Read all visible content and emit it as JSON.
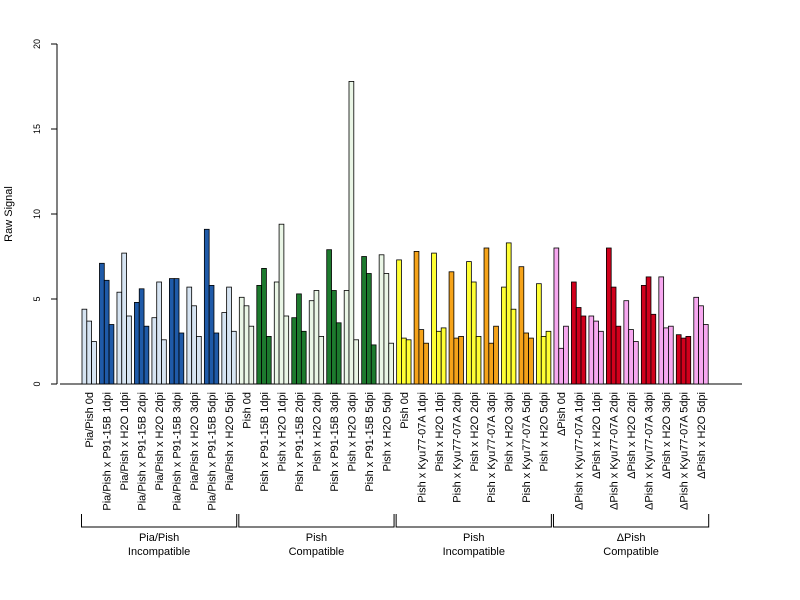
{
  "chart_data": {
    "type": "bar",
    "ylabel": "Raw Signal",
    "ylim": [
      0,
      20
    ],
    "yticks": [
      0,
      5,
      10,
      15,
      20
    ],
    "grid": false,
    "colors": {
      "light_blue": "#d6e4f2",
      "dark_blue": "#1f5aa8",
      "light_green": "#eaf6e6",
      "dark_green": "#1d7a2e",
      "yellow": "#ffff33",
      "orange": "#f5a31a",
      "pink": "#f7a8f0",
      "red": "#d1001c"
    },
    "categories": [
      {
        "label": "Pia/Pish 0d",
        "values": [
          4.4,
          3.7,
          2.5
        ],
        "color": "light_blue"
      },
      {
        "label": "Pia/Pish x P91-15B 1dpi",
        "values": [
          7.1,
          6.1,
          3.5
        ],
        "color": "dark_blue"
      },
      {
        "label": "Pia/Pish x H2O 1dpi",
        "values": [
          5.4,
          7.7,
          4.0
        ],
        "color": "light_blue"
      },
      {
        "label": "Pia/Pish x P91-15B 2dpi",
        "values": [
          4.8,
          5.6,
          3.4
        ],
        "color": "dark_blue"
      },
      {
        "label": "Pia/Pish x H2O 2dpi",
        "values": [
          3.9,
          6.0,
          2.6
        ],
        "color": "light_blue"
      },
      {
        "label": "Pia/Pish x P91-15B 3dpi",
        "values": [
          6.2,
          6.2,
          3.0
        ],
        "color": "dark_blue"
      },
      {
        "label": "Pia/Pish x H2O 3dpi",
        "values": [
          5.7,
          4.6,
          2.8
        ],
        "color": "light_blue"
      },
      {
        "label": "Pia/Pish x P91-15B 5dpi",
        "values": [
          9.1,
          5.8,
          3.0
        ],
        "color": "dark_blue"
      },
      {
        "label": "Pia/Pish x H2O 5dpi",
        "values": [
          4.2,
          5.7,
          3.1
        ],
        "color": "light_blue"
      },
      {
        "label": "Pish 0d",
        "values": [
          5.1,
          4.6,
          3.4
        ],
        "color": "light_green"
      },
      {
        "label": "Pish x P91-15B 1dpi",
        "values": [
          5.8,
          6.8,
          2.8
        ],
        "color": "dark_green"
      },
      {
        "label": "Pish x H2O 1dpi",
        "values": [
          6.0,
          9.4,
          4.0
        ],
        "color": "light_green"
      },
      {
        "label": "Pish x P91-15B 2dpi",
        "values": [
          3.9,
          5.3,
          3.1
        ],
        "color": "dark_green"
      },
      {
        "label": "Pish x H2O 2dpi",
        "values": [
          4.9,
          5.5,
          2.8
        ],
        "color": "light_green"
      },
      {
        "label": "Pish x P91-15B 3dpi",
        "values": [
          7.9,
          5.5,
          3.6
        ],
        "color": "dark_green"
      },
      {
        "label": "Pish x H2O 3dpi",
        "values": [
          5.5,
          17.8,
          2.6
        ],
        "color": "light_green"
      },
      {
        "label": "Pish x P91-15B 5dpi",
        "values": [
          7.5,
          6.5,
          2.3
        ],
        "color": "dark_green"
      },
      {
        "label": "Pish x H2O 5dpi",
        "values": [
          7.6,
          6.5,
          2.4
        ],
        "color": "light_green"
      },
      {
        "label": "Pish 0d",
        "values": [
          7.3,
          2.7,
          2.6
        ],
        "color": "yellow"
      },
      {
        "label": "Pish x Kyu77-07A 1dpi",
        "values": [
          7.8,
          3.2,
          2.4
        ],
        "color": "orange"
      },
      {
        "label": "Pish x H2O 1dpi",
        "values": [
          7.7,
          3.1,
          3.3
        ],
        "color": "yellow"
      },
      {
        "label": "Pish x Kyu77-07A 2dpi",
        "values": [
          6.6,
          2.7,
          2.8
        ],
        "color": "orange"
      },
      {
        "label": "Pish x H2O 2dpi",
        "values": [
          7.2,
          6.0,
          2.8
        ],
        "color": "yellow"
      },
      {
        "label": "Pish x Kyu77-07A 3dpi",
        "values": [
          8.0,
          2.4,
          3.4
        ],
        "color": "orange"
      },
      {
        "label": "Pish x H2O 3dpi",
        "values": [
          5.7,
          8.3,
          4.4
        ],
        "color": "yellow"
      },
      {
        "label": "Pish x Kyu77-07A 5dpi",
        "values": [
          6.9,
          3.0,
          2.7
        ],
        "color": "orange"
      },
      {
        "label": "Pish x H2O 5dpi",
        "values": [
          5.9,
          2.8,
          3.1
        ],
        "color": "yellow"
      },
      {
        "label": "ΔPish 0d",
        "values": [
          8.0,
          2.1,
          3.4
        ],
        "color": "pink"
      },
      {
        "label": "ΔPish x Kyu77-07A 1dpi",
        "values": [
          6.0,
          4.5,
          4.0
        ],
        "color": "red"
      },
      {
        "label": "ΔPish x H2O 1dpi",
        "values": [
          4.0,
          3.7,
          3.1
        ],
        "color": "pink"
      },
      {
        "label": "ΔPish x Kyu77-07A 2dpi",
        "values": [
          8.0,
          5.7,
          3.4
        ],
        "color": "red"
      },
      {
        "label": "ΔPish x H2O 2dpi",
        "values": [
          4.9,
          3.2,
          2.5
        ],
        "color": "pink"
      },
      {
        "label": "ΔPish x Kyu77-07A 3dpi",
        "values": [
          5.8,
          6.3,
          4.1
        ],
        "color": "red"
      },
      {
        "label": "ΔPish x H2O 3dpi",
        "values": [
          6.3,
          3.3,
          3.4
        ],
        "color": "pink"
      },
      {
        "label": "ΔPish x Kyu77-07A 5dpi",
        "values": [
          2.9,
          2.7,
          2.8
        ],
        "color": "red"
      },
      {
        "label": "ΔPish x H2O 5dpi",
        "values": [
          5.1,
          4.6,
          3.5
        ],
        "color": "pink"
      }
    ],
    "groups": [
      {
        "line1": "Pia/Pish",
        "line2": "Incompatible",
        "start": 0,
        "end": 8
      },
      {
        "line1": "Pish",
        "line2": "Compatible",
        "start": 9,
        "end": 17
      },
      {
        "line1": "Pish",
        "line2": "Incompatible",
        "start": 18,
        "end": 26
      },
      {
        "line1": "ΔPish",
        "line2": "Compatible",
        "start": 27,
        "end": 35
      }
    ]
  }
}
